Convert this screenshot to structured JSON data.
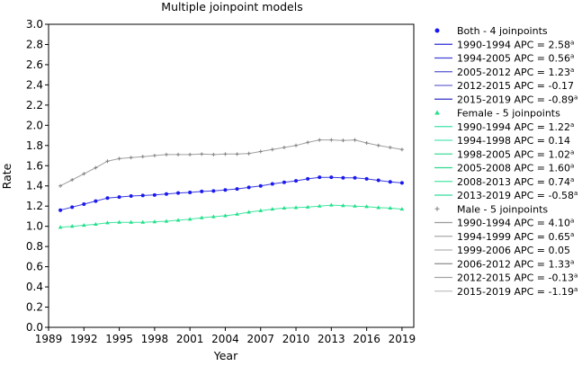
{
  "chart_data": {
    "type": "line",
    "title": "Multiple joinpoint models",
    "xlabel": "Year",
    "ylabel": "Rate",
    "xlim": [
      1989,
      2020
    ],
    "ylim": [
      0.0,
      3.0
    ],
    "x_ticks": [
      1989,
      1992,
      1995,
      1998,
      2001,
      2004,
      2007,
      2010,
      2013,
      2016,
      2019
    ],
    "y_ticks": [
      0.0,
      0.2,
      0.4,
      0.6,
      0.8,
      1.0,
      1.2,
      1.4,
      1.6,
      1.8,
      2.0,
      2.2,
      2.4,
      2.6,
      2.8,
      3.0
    ],
    "y_tick_labels": [
      "0.0",
      "0.2",
      "0.4",
      "0.6",
      "0.8",
      "1.0",
      "1.2",
      "1.4",
      "1.6",
      "1.8",
      "2.0",
      "2.2",
      "2.4",
      "2.6",
      "2.8",
      "3.0"
    ],
    "grid": false,
    "legend_position": "right",
    "x": [
      1990,
      1991,
      1992,
      1993,
      1994,
      1995,
      1996,
      1997,
      1998,
      1999,
      2000,
      2001,
      2002,
      2003,
      2004,
      2005,
      2006,
      2007,
      2008,
      2009,
      2010,
      2011,
      2012,
      2013,
      2014,
      2015,
      2016,
      2017,
      2018,
      2019
    ],
    "series": [
      {
        "name": "Both - 4 joinpoints",
        "marker": "circle",
        "color": "#1a1aee",
        "line_color": "#3a3ae0",
        "values": [
          1.16,
          1.19,
          1.22,
          1.25,
          1.28,
          1.29,
          1.3,
          1.305,
          1.31,
          1.32,
          1.33,
          1.335,
          1.345,
          1.35,
          1.36,
          1.37,
          1.385,
          1.4,
          1.42,
          1.435,
          1.45,
          1.47,
          1.485,
          1.485,
          1.48,
          1.48,
          1.47,
          1.455,
          1.44,
          1.43
        ],
        "segments": [
          {
            "label": "1990-1994 APC = 2.58",
            "sig": "a"
          },
          {
            "label": "1994-2005 APC = 0.56",
            "sig": "a"
          },
          {
            "label": "2005-2012 APC = 1.23",
            "sig": "a"
          },
          {
            "label": "2012-2015 APC = -0.17",
            "sig": ""
          },
          {
            "label": "2015-2019 APC = -0.89",
            "sig": "a"
          }
        ],
        "segment_colors": [
          "#2b2bd8",
          "#4040d8",
          "#5555d0",
          "#6a6ad0",
          "#3030c8"
        ]
      },
      {
        "name": "Female - 5 joinpoints",
        "marker": "triangle",
        "color": "#22e08a",
        "line_color": "#3ee6a0",
        "values": [
          0.99,
          1.0,
          1.01,
          1.02,
          1.035,
          1.04,
          1.04,
          1.04,
          1.045,
          1.05,
          1.06,
          1.07,
          1.085,
          1.095,
          1.105,
          1.12,
          1.14,
          1.155,
          1.17,
          1.18,
          1.185,
          1.19,
          1.2,
          1.21,
          1.205,
          1.2,
          1.195,
          1.185,
          1.18,
          1.17
        ],
        "segments": [
          {
            "label": "1990-1994 APC = 1.22",
            "sig": "a"
          },
          {
            "label": "1994-1998 APC = 0.14",
            "sig": ""
          },
          {
            "label": "1998-2005 APC = 1.02",
            "sig": "a"
          },
          {
            "label": "2005-2008 APC = 1.60",
            "sig": "a"
          },
          {
            "label": "2008-2013 APC = 0.74",
            "sig": "a"
          },
          {
            "label": "2013-2019 APC = -0.58",
            "sig": "a"
          }
        ],
        "segment_colors": [
          "#40e0a8",
          "#55e6b0",
          "#40dc98",
          "#30d890",
          "#4ae4a4",
          "#38dc9c"
        ]
      },
      {
        "name": "Male - 5 joinpoints",
        "marker": "plus",
        "color": "#808080",
        "line_color": "#a0a0a0",
        "values": [
          1.4,
          1.46,
          1.52,
          1.58,
          1.645,
          1.67,
          1.68,
          1.69,
          1.7,
          1.71,
          1.71,
          1.71,
          1.715,
          1.71,
          1.715,
          1.715,
          1.72,
          1.74,
          1.76,
          1.78,
          1.8,
          1.83,
          1.855,
          1.855,
          1.85,
          1.855,
          1.825,
          1.8,
          1.78,
          1.76
        ],
        "segments": [
          {
            "label": "1990-1994 APC = 4.10",
            "sig": "a"
          },
          {
            "label": "1994-1999 APC = 0.65",
            "sig": "a"
          },
          {
            "label": "1999-2006 APC = 0.05",
            "sig": ""
          },
          {
            "label": "2006-2012 APC = 1.33",
            "sig": "a"
          },
          {
            "label": "2012-2015 APC = -0.13",
            "sig": "a"
          },
          {
            "label": "2015-2019 APC = -1.19",
            "sig": "a"
          }
        ],
        "segment_colors": [
          "#9a9a9a",
          "#aaaaaa",
          "#b4b4b4",
          "#8c8c8c",
          "#a4a4a4",
          "#c0c0c0"
        ]
      }
    ]
  }
}
